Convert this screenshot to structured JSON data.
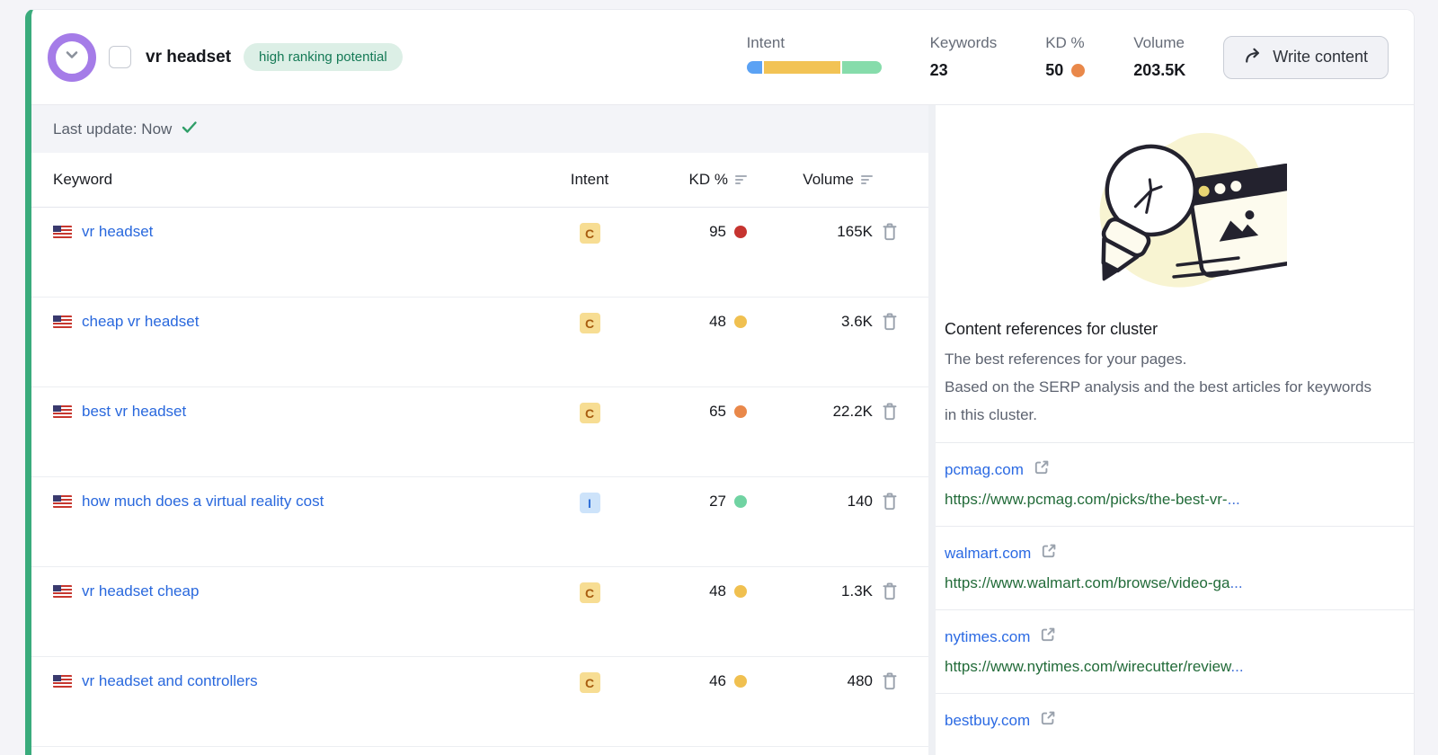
{
  "header": {
    "title": "vr headset",
    "badge_label": "high ranking potential",
    "metrics": {
      "intent_label": "Intent",
      "intent_segments": [
        {
          "name": "informational",
          "color": "#5ba2f4",
          "pct": 12
        },
        {
          "name": "commercial",
          "color": "#f2c355",
          "pct": 58
        },
        {
          "name": "transactional",
          "color": "#86dcab",
          "pct": 30
        }
      ],
      "keywords_label": "Keywords",
      "keywords_value": "23",
      "kd_label": "KD %",
      "kd_value": "50",
      "kd_color": "#e9884a",
      "volume_label": "Volume",
      "volume_value": "203.5K"
    },
    "write_content_label": "Write content"
  },
  "table": {
    "last_update": "Last update: Now",
    "columns": {
      "keyword": "Keyword",
      "intent": "Intent",
      "kd": "KD %",
      "volume": "Volume"
    },
    "rows": [
      {
        "keyword": "vr headset",
        "intent": "C",
        "intent_bg": "#f7dd93",
        "intent_color": "#a85c0f",
        "kd": "95",
        "kd_color": "#c63430",
        "volume": "165K"
      },
      {
        "keyword": "cheap vr headset",
        "intent": "C",
        "intent_bg": "#f7dd93",
        "intent_color": "#a85c0f",
        "kd": "48",
        "kd_color": "#f0c050",
        "volume": "3.6K"
      },
      {
        "keyword": "best vr headset",
        "intent": "C",
        "intent_bg": "#f7dd93",
        "intent_color": "#a85c0f",
        "kd": "65",
        "kd_color": "#e9884a",
        "volume": "22.2K"
      },
      {
        "keyword": "how much does a virtual reality cost",
        "intent": "I",
        "intent_bg": "#cde3fa",
        "intent_color": "#2e6fd8",
        "kd": "27",
        "kd_color": "#70d3a2",
        "volume": "140"
      },
      {
        "keyword": "vr headset cheap",
        "intent": "C",
        "intent_bg": "#f7dd93",
        "intent_color": "#a85c0f",
        "kd": "48",
        "kd_color": "#f0c050",
        "volume": "1.3K"
      },
      {
        "keyword": "vr headset and controllers",
        "intent": "C",
        "intent_bg": "#f7dd93",
        "intent_color": "#a85c0f",
        "kd": "46",
        "kd_color": "#f0c050",
        "volume": "480"
      }
    ]
  },
  "sidebar": {
    "heading": "Content references for cluster",
    "description_line1": "The best references for your pages.",
    "description_line2": "Based on the SERP analysis and the best articles for keywords in this cluster.",
    "references": [
      {
        "domain": "pcmag.com",
        "url": "https://www.pcmag.com/picks/the-best-vr-",
        "ellipsis": "..."
      },
      {
        "domain": "walmart.com",
        "url": "https://www.walmart.com/browse/video-ga",
        "ellipsis": "..."
      },
      {
        "domain": "nytimes.com",
        "url": "https://www.nytimes.com/wirecutter/review",
        "ellipsis": "..."
      },
      {
        "domain": "bestbuy.com",
        "url": "",
        "ellipsis": ""
      }
    ]
  }
}
